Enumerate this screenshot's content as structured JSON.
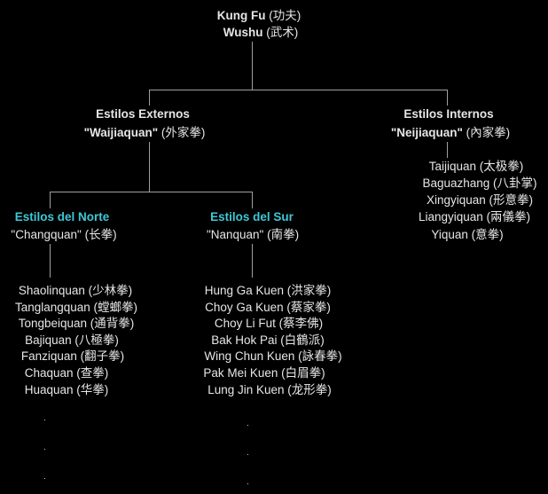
{
  "root": {
    "line1_bold": "Kung Fu",
    "line1_cn": "(功夫)",
    "line2_bold": "Wushu",
    "line2_cn": "(武术)"
  },
  "external": {
    "title": "Estilos Externos",
    "name_bold": "\"Waijiaquan\"",
    "name_cn": "(外家拳)"
  },
  "internal": {
    "title": "Estilos Internos",
    "name_bold": "\"Neijiaquan\"",
    "name_cn": "(內家拳)",
    "styles": [
      "Taijiquan (太极拳)",
      "Baguazhang (八卦掌)",
      "Xingyiquan (形意拳)",
      "Liangyiquan (兩儀拳)",
      "Yiquan (意拳)"
    ]
  },
  "north": {
    "title": "Estilos del Norte",
    "name": "\"Changquan\" (长拳)",
    "styles": [
      "Shaolinquan (少林拳)",
      "Tanglangquan (螳螂拳)",
      "Tongbeiquan (通背拳)",
      "Bajiquan (八極拳)",
      "Fanziquan (翻子拳)",
      "Chaquan (查拳)",
      "Huaquan (华拳)"
    ]
  },
  "south": {
    "title": "Estilos del Sur",
    "name": "\"Nanquan\" (南拳)",
    "styles": [
      "Hung Ga Kuen (洪家拳)",
      "Choy Ga Kuen (蔡家拳)",
      "Choy Li Fut (蔡李佛)",
      "Bak Hok Pai (白鶴派)",
      "Wing Chun Kuen (詠春拳)",
      "Pak Mei Kuen (白眉拳)",
      "Lung Jin Kuen (龙形拳)"
    ]
  },
  "colors": {
    "background": "#000000",
    "text": "#e6e6e6",
    "subcategory": "#3ec8d6",
    "lines": "#a0a0a0"
  }
}
